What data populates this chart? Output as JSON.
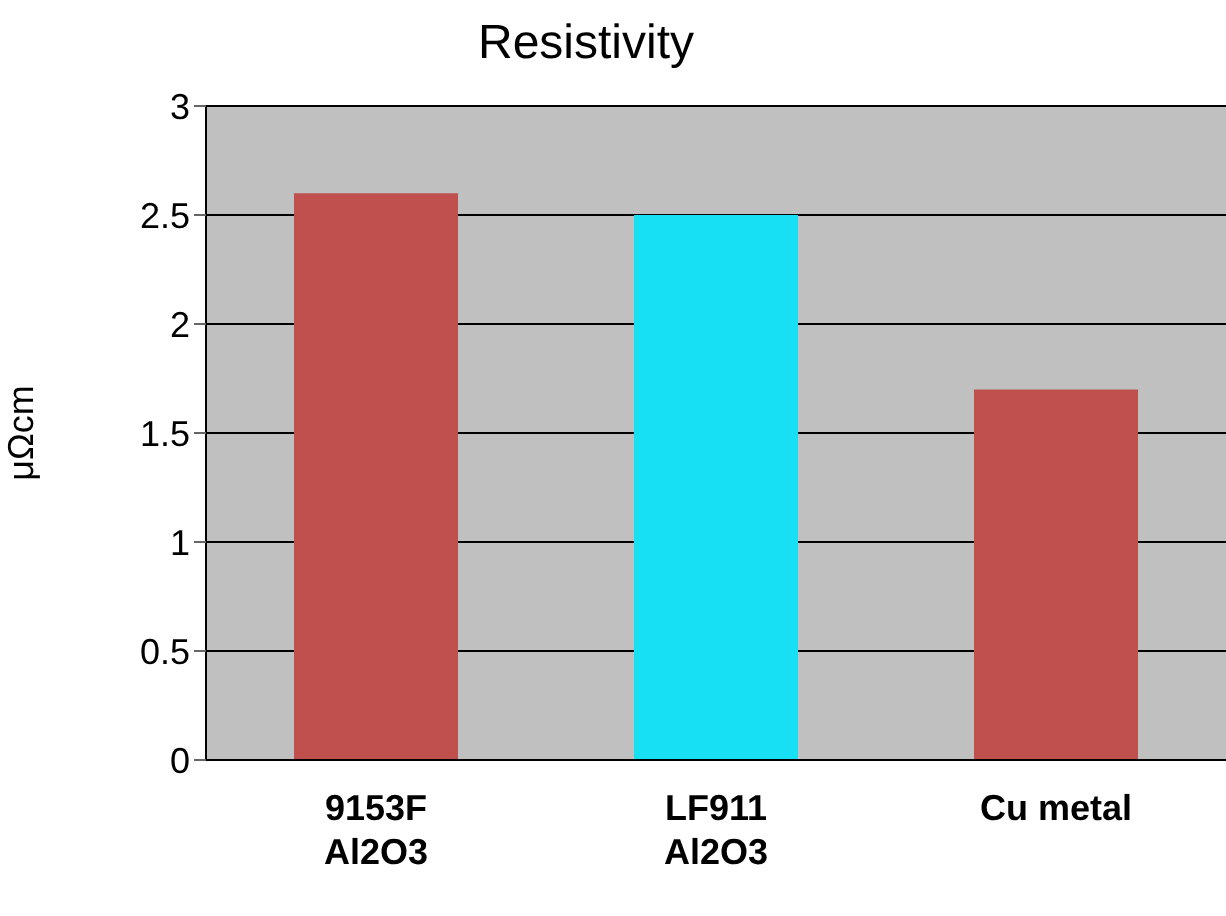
{
  "chart_data": {
    "type": "bar",
    "title": "Resistivity",
    "ylabel": "μΩcm",
    "categories": [
      "9153F Al2O3",
      "LF911 Al2O3",
      "Cu metal"
    ],
    "values": [
      2.6,
      2.5,
      1.7
    ],
    "colors": [
      "#c0504d",
      "#17e0f5",
      "#c0504d"
    ],
    "ylim": [
      0,
      3
    ],
    "yticks": [
      0,
      0.5,
      1,
      1.5,
      2,
      2.5,
      3
    ],
    "grid": "y"
  }
}
